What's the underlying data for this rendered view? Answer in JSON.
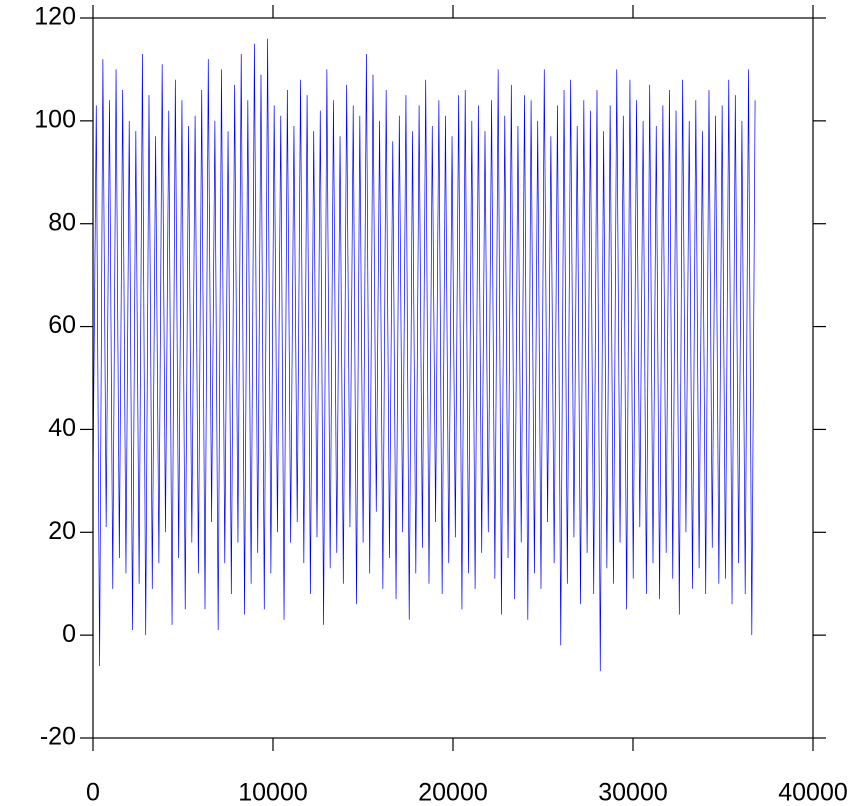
{
  "chart_data": {
    "type": "line",
    "x": [
      0,
      183,
      366,
      549,
      732,
      915,
      1098,
      1281,
      1464,
      1647,
      1830,
      2013,
      2196,
      2379,
      2562,
      2745,
      2928,
      3111,
      3294,
      3477,
      3660,
      3843,
      4026,
      4209,
      4392,
      4575,
      4758,
      4941,
      5124,
      5307,
      5490,
      5673,
      5856,
      6039,
      6222,
      6405,
      6588,
      6771,
      6954,
      7137,
      7320,
      7503,
      7686,
      7869,
      8052,
      8235,
      8418,
      8601,
      8784,
      8967,
      9150,
      9333,
      9516,
      9699,
      9882,
      10065,
      10248,
      10431,
      10614,
      10797,
      10980,
      11163,
      11346,
      11529,
      11712,
      11895,
      12078,
      12261,
      12444,
      12627,
      12810,
      12993,
      13176,
      13359,
      13542,
      13725,
      13908,
      14091,
      14274,
      14457,
      14640,
      14823,
      15006,
      15189,
      15372,
      15555,
      15738,
      15921,
      16104,
      16287,
      16470,
      16653,
      16836,
      17019,
      17202,
      17385,
      17568,
      17751,
      17934,
      18117,
      18300,
      18483,
      18666,
      18849,
      19032,
      19215,
      19398,
      19581,
      19764,
      19947,
      20130,
      20313,
      20496,
      20679,
      20862,
      21045,
      21228,
      21411,
      21594,
      21777,
      21960,
      22143,
      22326,
      22509,
      22692,
      22875,
      23058,
      23241,
      23424,
      23607,
      23790,
      23973,
      24156,
      24339,
      24522,
      24705,
      24888,
      25071,
      25254,
      25437,
      25620,
      25803,
      25986,
      26169,
      26352,
      26535,
      26718,
      26901,
      27084,
      27267,
      27450,
      27633,
      27816,
      27999,
      28182,
      28365,
      28548,
      28731,
      28914,
      29097,
      29280,
      29463,
      29646,
      29829,
      30012,
      30195,
      30378,
      30561,
      30744,
      30927,
      31110,
      31293,
      31476,
      31659,
      31842,
      32025,
      32208,
      32391,
      32574,
      32757,
      32940,
      33123,
      33306,
      33489,
      33672,
      33855,
      34038,
      34221,
      34404,
      34587,
      34770,
      34953,
      35136,
      35319,
      35502,
      35685,
      35868,
      36051,
      36234,
      36417,
      36600,
      36783
    ],
    "series": [
      {
        "color": "#0000ff",
        "values": [
          30,
          103,
          -6,
          112,
          21,
          104,
          9,
          110,
          15,
          106,
          12,
          100,
          1,
          98,
          10,
          113,
          0,
          105,
          9,
          97,
          14,
          111,
          20,
          102,
          2,
          108,
          15,
          104,
          5,
          99,
          18,
          101,
          12,
          106,
          5,
          112,
          22,
          100,
          1,
          110,
          14,
          98,
          8,
          107,
          18,
          113,
          4,
          104,
          10,
          115,
          16,
          109,
          5,
          116,
          12,
          103,
          20,
          101,
          3,
          106,
          18,
          99,
          22,
          108,
          14,
          105,
          8,
          98,
          19,
          102,
          2,
          110,
          13,
          104,
          16,
          97,
          10,
          107,
          21,
          103,
          6,
          101,
          18,
          113,
          12,
          109,
          24,
          100,
          9,
          106,
          15,
          96,
          7,
          101,
          20,
          105,
          3,
          98,
          12,
          103,
          17,
          108,
          10,
          99,
          22,
          104,
          8,
          101,
          14,
          97,
          19,
          105,
          5,
          106,
          12,
          100,
          9,
          103,
          16,
          98,
          20,
          104,
          11,
          110,
          4,
          101,
          15,
          107,
          7,
          99,
          18,
          105,
          3,
          104,
          12,
          100,
          9,
          110,
          22,
          97,
          14,
          103,
          -2,
          106,
          10,
          108,
          19,
          99,
          6,
          104,
          16,
          102,
          8,
          106,
          -7,
          98,
          13,
          103,
          10,
          110,
          18,
          101,
          5,
          108,
          11,
          104,
          21,
          100,
          8,
          107,
          14,
          99,
          7,
          103,
          16,
          106,
          11,
          102,
          4,
          108,
          20,
          100,
          9,
          104,
          13,
          98,
          8,
          106,
          17,
          101,
          10,
          103,
          11,
          108,
          6,
          105,
          14,
          100,
          8,
          110,
          0,
          104
        ]
      }
    ],
    "xlim": [
      0,
      40000
    ],
    "xticks": [
      0,
      10000,
      20000,
      30000,
      40000
    ],
    "ylim": [
      -20,
      120
    ],
    "yticks": [
      -20,
      0,
      20,
      40,
      60,
      80,
      100,
      120
    ]
  }
}
